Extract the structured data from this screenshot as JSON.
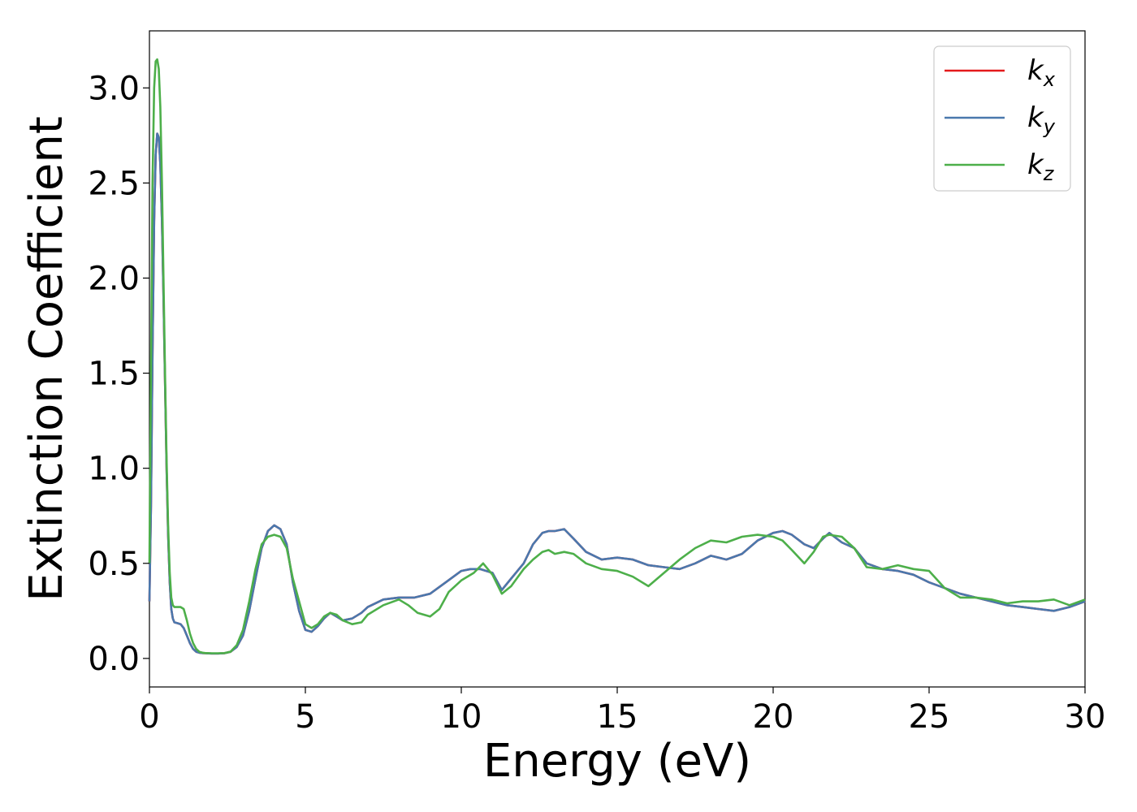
{
  "chart_data": {
    "type": "line",
    "xlabel": "Energy (eV)",
    "ylabel": "Extinction Coefficient",
    "xlim": [
      0,
      30
    ],
    "ylim": [
      -0.15,
      3.3
    ],
    "xticks": [
      0,
      5,
      10,
      15,
      20,
      25,
      30
    ],
    "xtick_labels": [
      "0",
      "5",
      "10",
      "15",
      "20",
      "25",
      "30"
    ],
    "yticks": [
      0.0,
      0.5,
      1.0,
      1.5,
      2.0,
      2.5,
      3.0
    ],
    "ytick_labels": [
      "0.0",
      "0.5",
      "1.0",
      "1.5",
      "2.0",
      "2.5",
      "3.0"
    ],
    "grid": false,
    "legend_position": "top-right",
    "series": [
      {
        "name": "k_x",
        "label_main": "k",
        "label_sub": "x",
        "color": "#e41a1c",
        "x": [
          0,
          0.05,
          0.1,
          0.15,
          0.2,
          0.25,
          0.3,
          0.35,
          0.4,
          0.45,
          0.5,
          0.55,
          0.6,
          0.65,
          0.7,
          0.75,
          0.8,
          0.9,
          1.0,
          1.1,
          1.2,
          1.3,
          1.4,
          1.5,
          1.6,
          1.7,
          1.8,
          2.0,
          2.2,
          2.4,
          2.6,
          2.8,
          3.0,
          3.2,
          3.4,
          3.6,
          3.8,
          4.0,
          4.2,
          4.4,
          4.5,
          4.6,
          4.8,
          5.0,
          5.2,
          5.4,
          5.6,
          5.8,
          6.0,
          6.2,
          6.5,
          6.8,
          7.0,
          7.5,
          8.0,
          8.5,
          9.0,
          9.5,
          10.0,
          10.3,
          10.6,
          11.0,
          11.3,
          11.6,
          12.0,
          12.3,
          12.6,
          12.8,
          13.0,
          13.3,
          13.6,
          14.0,
          14.5,
          15.0,
          15.5,
          16.0,
          16.5,
          17.0,
          17.5,
          18.0,
          18.5,
          19.0,
          19.5,
          20.0,
          20.3,
          20.6,
          21.0,
          21.3,
          21.6,
          21.8,
          22.2,
          22.6,
          23.0,
          23.5,
          24.0,
          24.5,
          25.0,
          25.5,
          26.0,
          26.5,
          27.0,
          27.5,
          28.0,
          28.5,
          29.0,
          29.5,
          30.0
        ],
        "y": [
          0.3,
          0.8,
          1.6,
          2.3,
          2.65,
          2.76,
          2.74,
          2.6,
          2.3,
          1.9,
          1.45,
          1.0,
          0.65,
          0.4,
          0.26,
          0.21,
          0.19,
          0.185,
          0.18,
          0.16,
          0.12,
          0.08,
          0.05,
          0.035,
          0.03,
          0.028,
          0.027,
          0.026,
          0.026,
          0.027,
          0.035,
          0.06,
          0.12,
          0.25,
          0.42,
          0.58,
          0.67,
          0.7,
          0.68,
          0.6,
          0.5,
          0.4,
          0.25,
          0.15,
          0.14,
          0.17,
          0.21,
          0.24,
          0.22,
          0.2,
          0.21,
          0.24,
          0.27,
          0.31,
          0.32,
          0.32,
          0.34,
          0.4,
          0.46,
          0.47,
          0.47,
          0.45,
          0.36,
          0.42,
          0.5,
          0.6,
          0.66,
          0.67,
          0.67,
          0.68,
          0.63,
          0.56,
          0.52,
          0.53,
          0.52,
          0.49,
          0.48,
          0.47,
          0.5,
          0.54,
          0.52,
          0.55,
          0.62,
          0.66,
          0.67,
          0.65,
          0.6,
          0.58,
          0.63,
          0.66,
          0.61,
          0.58,
          0.5,
          0.47,
          0.46,
          0.44,
          0.4,
          0.37,
          0.34,
          0.32,
          0.3,
          0.28,
          0.27,
          0.26,
          0.25,
          0.27,
          0.3
        ]
      },
      {
        "name": "k_y",
        "label_main": "k",
        "label_sub": "y",
        "color": "#4a78ad",
        "x": [
          0,
          0.05,
          0.1,
          0.15,
          0.2,
          0.25,
          0.3,
          0.35,
          0.4,
          0.45,
          0.5,
          0.55,
          0.6,
          0.65,
          0.7,
          0.75,
          0.8,
          0.9,
          1.0,
          1.1,
          1.2,
          1.3,
          1.4,
          1.5,
          1.6,
          1.7,
          1.8,
          2.0,
          2.2,
          2.4,
          2.6,
          2.8,
          3.0,
          3.2,
          3.4,
          3.6,
          3.8,
          4.0,
          4.2,
          4.4,
          4.5,
          4.6,
          4.8,
          5.0,
          5.2,
          5.4,
          5.6,
          5.8,
          6.0,
          6.2,
          6.5,
          6.8,
          7.0,
          7.5,
          8.0,
          8.5,
          9.0,
          9.5,
          10.0,
          10.3,
          10.6,
          11.0,
          11.3,
          11.6,
          12.0,
          12.3,
          12.6,
          12.8,
          13.0,
          13.3,
          13.6,
          14.0,
          14.5,
          15.0,
          15.5,
          16.0,
          16.5,
          17.0,
          17.5,
          18.0,
          18.5,
          19.0,
          19.5,
          20.0,
          20.3,
          20.6,
          21.0,
          21.3,
          21.6,
          21.8,
          22.2,
          22.6,
          23.0,
          23.5,
          24.0,
          24.5,
          25.0,
          25.5,
          26.0,
          26.5,
          27.0,
          27.5,
          28.0,
          28.5,
          29.0,
          29.5,
          30.0
        ],
        "y": [
          0.3,
          0.8,
          1.6,
          2.3,
          2.65,
          2.76,
          2.74,
          2.6,
          2.3,
          1.9,
          1.45,
          1.0,
          0.65,
          0.4,
          0.26,
          0.21,
          0.19,
          0.185,
          0.18,
          0.16,
          0.12,
          0.08,
          0.05,
          0.035,
          0.03,
          0.028,
          0.027,
          0.026,
          0.026,
          0.027,
          0.035,
          0.06,
          0.12,
          0.25,
          0.42,
          0.58,
          0.67,
          0.7,
          0.68,
          0.6,
          0.5,
          0.4,
          0.25,
          0.15,
          0.14,
          0.17,
          0.21,
          0.24,
          0.22,
          0.2,
          0.21,
          0.24,
          0.27,
          0.31,
          0.32,
          0.32,
          0.34,
          0.4,
          0.46,
          0.47,
          0.47,
          0.45,
          0.36,
          0.42,
          0.5,
          0.6,
          0.66,
          0.67,
          0.67,
          0.68,
          0.63,
          0.56,
          0.52,
          0.53,
          0.52,
          0.49,
          0.48,
          0.47,
          0.5,
          0.54,
          0.52,
          0.55,
          0.62,
          0.66,
          0.67,
          0.65,
          0.6,
          0.58,
          0.63,
          0.66,
          0.61,
          0.58,
          0.5,
          0.47,
          0.46,
          0.44,
          0.4,
          0.37,
          0.34,
          0.32,
          0.3,
          0.28,
          0.27,
          0.26,
          0.25,
          0.27,
          0.3
        ]
      },
      {
        "name": "k_z",
        "label_main": "k",
        "label_sub": "z",
        "color": "#4daf4a",
        "x": [
          0,
          0.05,
          0.1,
          0.15,
          0.2,
          0.25,
          0.3,
          0.35,
          0.4,
          0.45,
          0.5,
          0.55,
          0.6,
          0.65,
          0.7,
          0.75,
          0.8,
          0.9,
          1.0,
          1.1,
          1.2,
          1.3,
          1.4,
          1.5,
          1.6,
          1.7,
          1.8,
          2.0,
          2.2,
          2.4,
          2.6,
          2.8,
          3.0,
          3.2,
          3.4,
          3.6,
          3.8,
          4.0,
          4.2,
          4.4,
          4.5,
          4.6,
          4.8,
          5.0,
          5.2,
          5.4,
          5.6,
          5.8,
          6.0,
          6.2,
          6.5,
          6.8,
          7.0,
          7.5,
          8.0,
          8.3,
          8.6,
          9.0,
          9.3,
          9.6,
          10.0,
          10.4,
          10.7,
          11.0,
          11.3,
          11.6,
          12.0,
          12.3,
          12.6,
          12.8,
          13.0,
          13.3,
          13.6,
          14.0,
          14.5,
          15.0,
          15.5,
          16.0,
          16.5,
          17.0,
          17.5,
          18.0,
          18.5,
          19.0,
          19.5,
          20.0,
          20.3,
          20.6,
          21.0,
          21.3,
          21.6,
          21.8,
          22.2,
          22.6,
          23.0,
          23.5,
          24.0,
          24.5,
          25.0,
          25.5,
          26.0,
          26.5,
          27.0,
          27.5,
          28.0,
          28.5,
          29.0,
          29.5,
          30.0
        ],
        "y": [
          0.5,
          1.5,
          2.5,
          3.0,
          3.14,
          3.15,
          3.1,
          2.9,
          2.5,
          2.0,
          1.5,
          1.05,
          0.7,
          0.45,
          0.32,
          0.28,
          0.27,
          0.27,
          0.27,
          0.26,
          0.2,
          0.13,
          0.08,
          0.05,
          0.035,
          0.03,
          0.028,
          0.027,
          0.027,
          0.028,
          0.035,
          0.07,
          0.15,
          0.3,
          0.47,
          0.6,
          0.64,
          0.65,
          0.64,
          0.58,
          0.5,
          0.42,
          0.3,
          0.18,
          0.16,
          0.18,
          0.22,
          0.24,
          0.23,
          0.2,
          0.18,
          0.19,
          0.23,
          0.28,
          0.31,
          0.28,
          0.24,
          0.22,
          0.26,
          0.35,
          0.41,
          0.45,
          0.5,
          0.44,
          0.34,
          0.38,
          0.47,
          0.52,
          0.56,
          0.57,
          0.55,
          0.56,
          0.55,
          0.5,
          0.47,
          0.46,
          0.43,
          0.38,
          0.45,
          0.52,
          0.58,
          0.62,
          0.61,
          0.64,
          0.65,
          0.64,
          0.62,
          0.57,
          0.5,
          0.56,
          0.64,
          0.65,
          0.64,
          0.58,
          0.48,
          0.47,
          0.49,
          0.47,
          0.46,
          0.37,
          0.32,
          0.32,
          0.31,
          0.29,
          0.3,
          0.3,
          0.31,
          0.28,
          0.31
        ]
      }
    ]
  }
}
